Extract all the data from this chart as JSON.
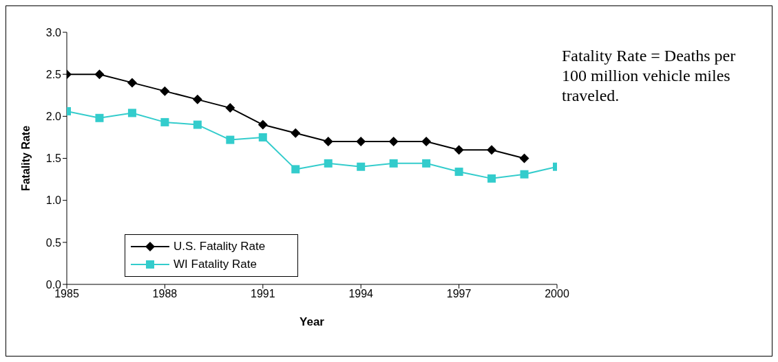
{
  "chart_data": {
    "type": "line",
    "xlabel": "Year",
    "ylabel": "Fatality Rate",
    "x": [
      1985,
      1986,
      1987,
      1988,
      1989,
      1990,
      1991,
      1992,
      1993,
      1994,
      1995,
      1996,
      1997,
      1998,
      1999,
      2000
    ],
    "series": [
      {
        "name": "U.S. Fatality Rate",
        "color": "#000000",
        "marker": "diamond",
        "values": [
          2.5,
          2.5,
          2.4,
          2.3,
          2.2,
          2.1,
          1.9,
          1.8,
          1.7,
          1.7,
          1.7,
          1.7,
          1.6,
          1.6,
          1.5,
          null
        ]
      },
      {
        "name": "WI Fatality Rate",
        "color": "#33cccc",
        "marker": "square",
        "values": [
          2.06,
          1.98,
          2.04,
          1.93,
          1.9,
          1.72,
          1.75,
          1.37,
          1.44,
          1.4,
          1.44,
          1.44,
          1.34,
          1.26,
          1.31,
          1.4
        ]
      }
    ],
    "xlim": [
      1985,
      2000
    ],
    "xticks": [
      1985,
      1988,
      1991,
      1994,
      1997,
      2000
    ],
    "ylim": [
      0,
      3
    ],
    "yticks": [
      {
        "value": 0,
        "label": "0.0"
      },
      {
        "value": 0.5,
        "label": "0.5"
      },
      {
        "value": 1,
        "label": "1.0"
      },
      {
        "value": 1.5,
        "label": "1.5"
      },
      {
        "value": 2,
        "label": "2.0"
      },
      {
        "value": 2.5,
        "label": "2.5"
      },
      {
        "value": 3,
        "label": "3.0"
      }
    ],
    "grid": false,
    "legend": "bottom left",
    "line_style": "solid",
    "annotations": [
      "Fatality Rate = Deaths per 100 million vehicle miles traveled."
    ]
  }
}
